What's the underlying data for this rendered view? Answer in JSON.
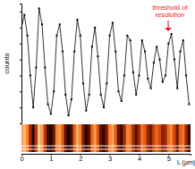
{
  "chart_data": {
    "type": "line",
    "x_label": "L (µm)",
    "y_label": "counts",
    "annotation": [
      "threshold of",
      "resolution"
    ],
    "x": [
      0.0,
      0.1,
      0.2,
      0.3,
      0.4,
      0.5,
      0.6,
      0.7,
      0.8,
      0.9,
      1.0,
      1.1,
      1.2,
      1.3,
      1.4,
      1.5,
      1.6,
      1.7,
      1.8,
      1.9,
      2.0,
      2.1,
      2.2,
      2.3,
      2.4,
      2.5,
      2.6,
      2.7,
      2.8,
      2.9,
      3.0,
      3.1,
      3.2,
      3.3,
      3.4,
      3.5,
      3.6,
      3.7,
      3.8,
      3.9,
      4.0,
      4.1,
      4.2,
      4.3,
      4.4,
      4.5,
      4.6,
      4.7,
      4.8,
      4.9,
      5.0,
      5.1,
      5.2,
      5.3,
      5.4,
      5.5,
      5.6,
      5.7
    ],
    "values": [
      60,
      68,
      55,
      30,
      10,
      35,
      72,
      62,
      35,
      12,
      6,
      20,
      55,
      62,
      45,
      18,
      5,
      15,
      45,
      65,
      55,
      25,
      8,
      18,
      48,
      60,
      42,
      18,
      10,
      25,
      55,
      63,
      45,
      20,
      14,
      30,
      55,
      52,
      32,
      18,
      30,
      52,
      45,
      28,
      22,
      38,
      48,
      40,
      26,
      30,
      50,
      56,
      40,
      22,
      45,
      52,
      30,
      12
    ],
    "color": "#000000",
    "marker": "square",
    "xlim": [
      0,
      5.75
    ],
    "xticks": [
      0,
      1,
      2,
      3,
      4,
      5
    ],
    "ylim": [
      0,
      75
    ],
    "yticks": [
      0,
      10,
      20,
      30,
      40,
      50,
      60,
      70
    ],
    "tick_labels": "x",
    "grid": false
  }
}
